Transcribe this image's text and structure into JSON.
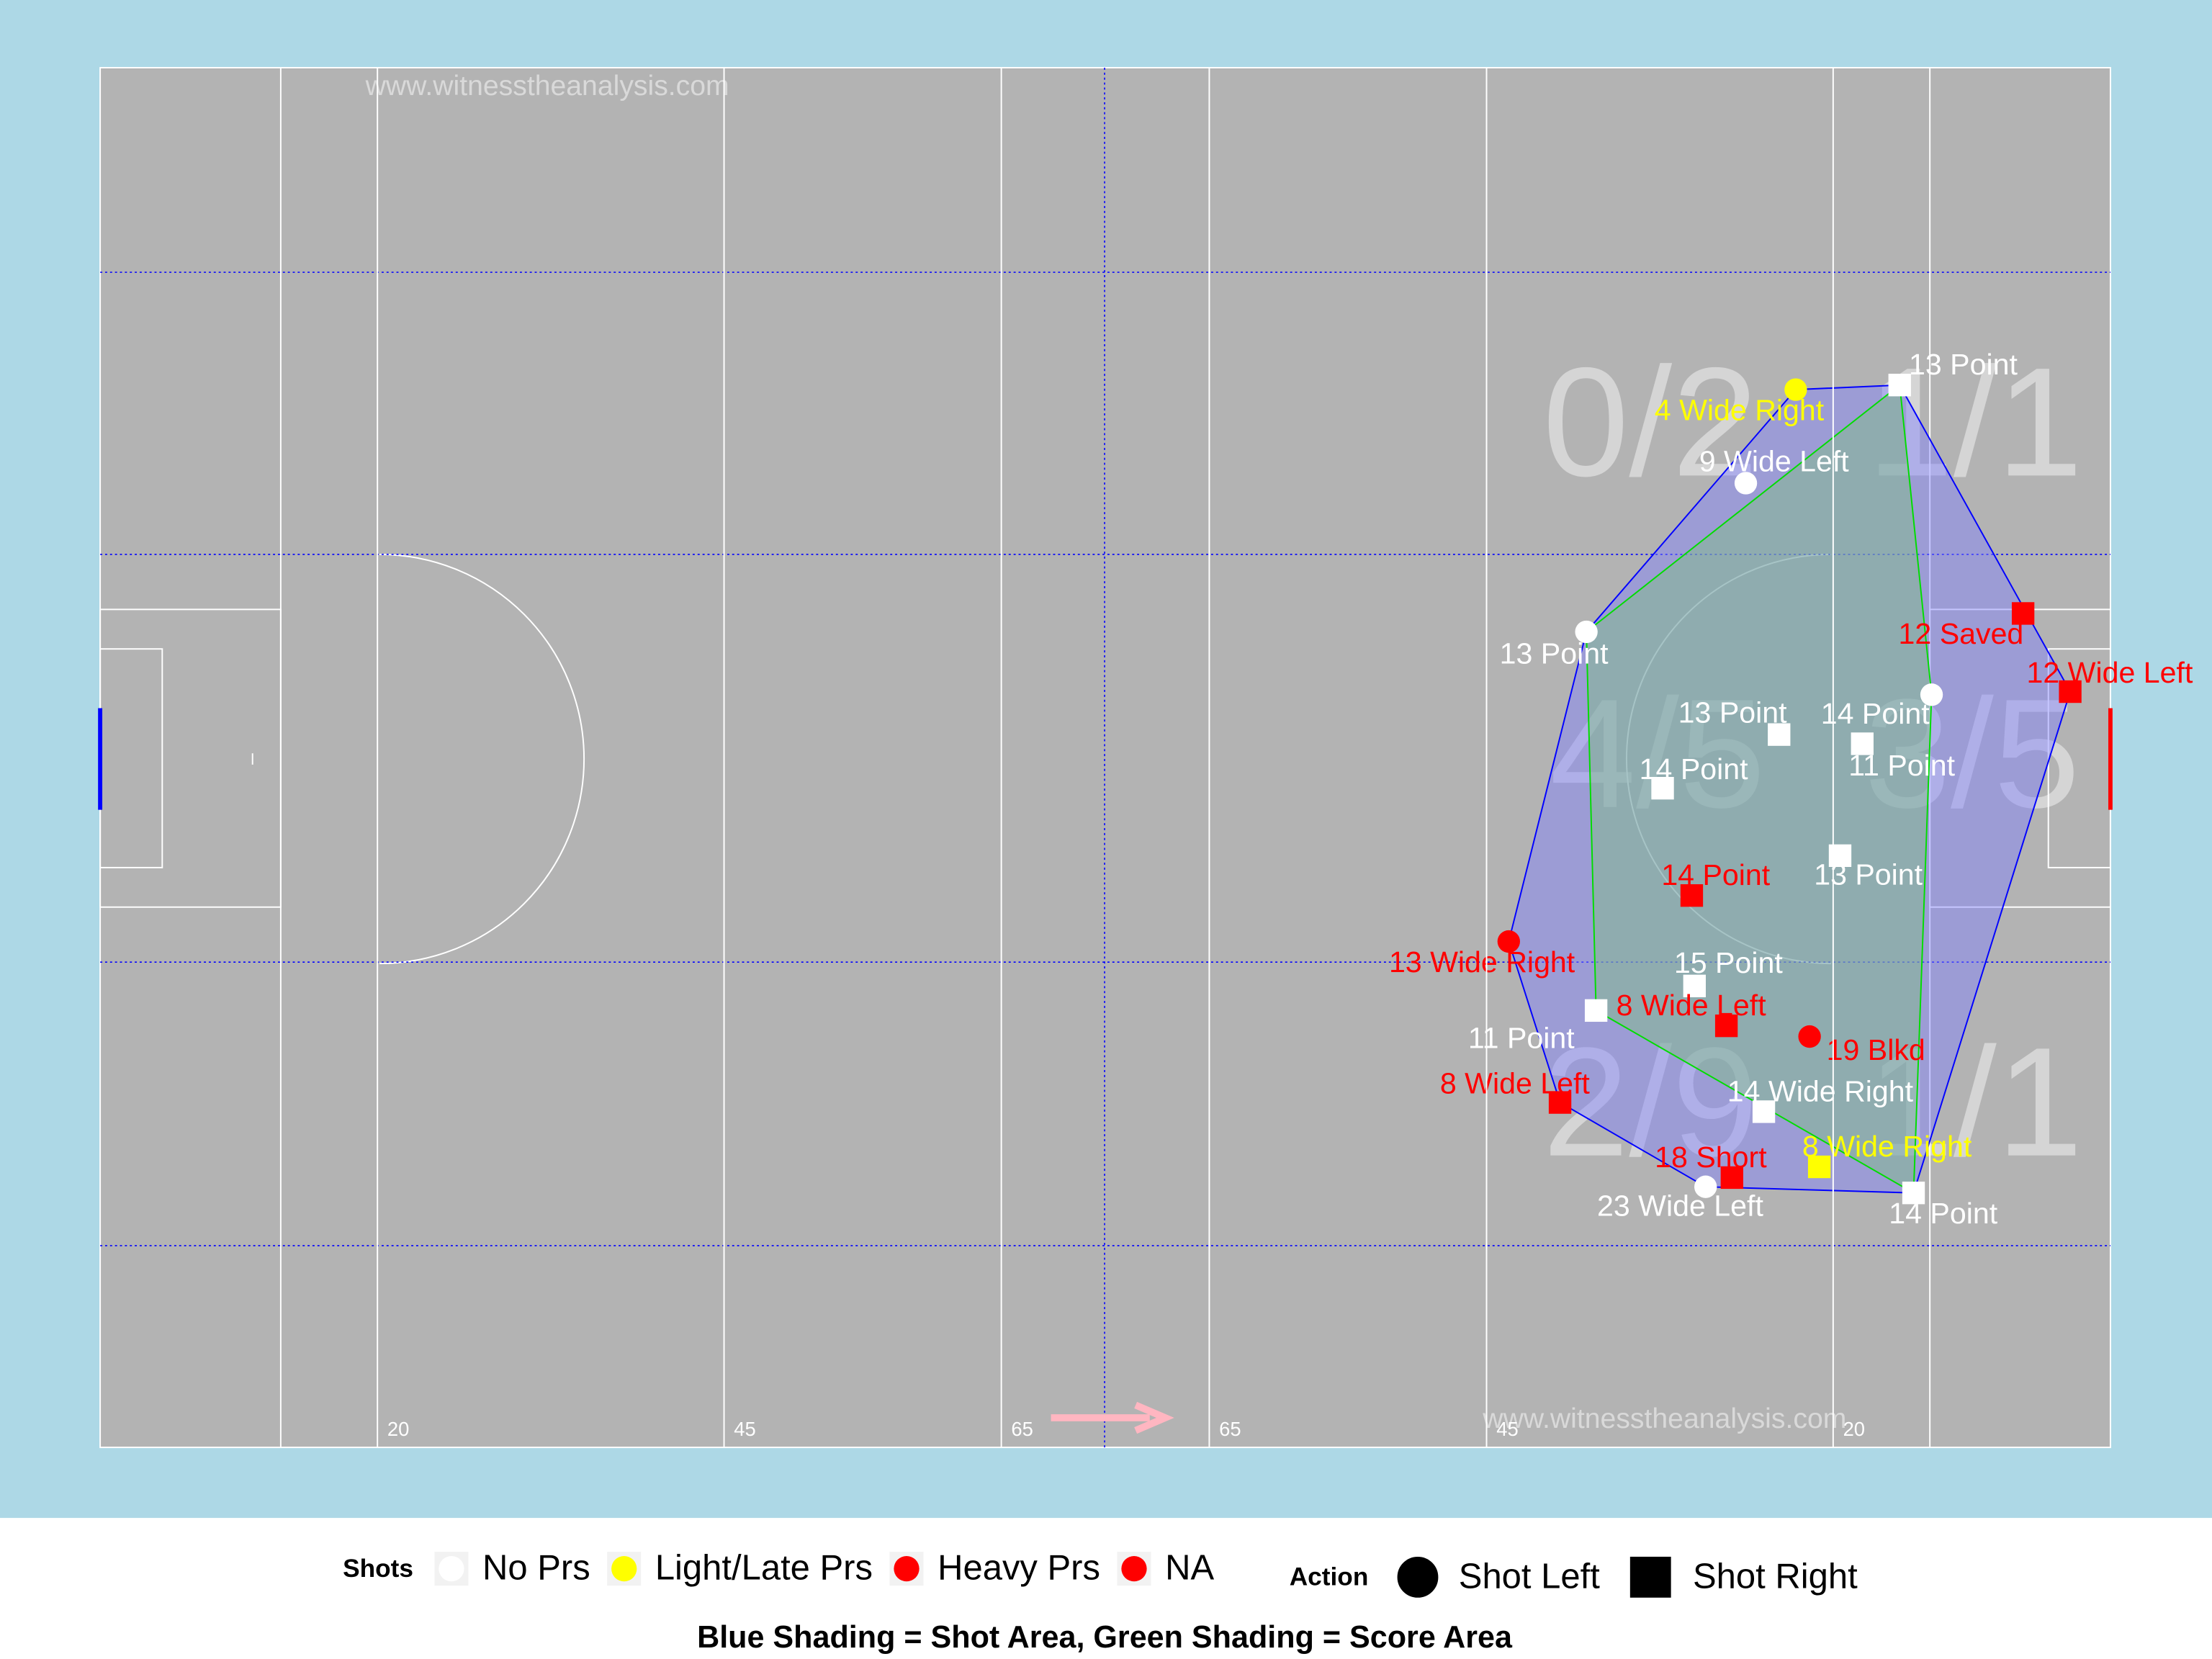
{
  "chart_data": {
    "type": "scatter",
    "watermarks": [
      "www.witnesstheanalysis.com",
      "www.witnesstheanalysis.com"
    ],
    "xlim": [
      0,
      145
    ],
    "ylim": [
      0,
      90
    ],
    "xticks": [
      20,
      45,
      65,
      {
        "value": 80,
        "label": "65"
      },
      {
        "value": 100,
        "label": "45"
      },
      {
        "value": 125,
        "label": "20"
      }
    ],
    "zones": [
      "0/2",
      "1/1",
      "4/5",
      "3/5",
      "2/9",
      "1/1"
    ],
    "legend": {
      "shots_title": "Shots",
      "pressure": [
        {
          "name": "No Prs",
          "color": "#ffffff"
        },
        {
          "name": "Light/Late Prs",
          "color": "#ffff00"
        },
        {
          "name": "Heavy Prs",
          "color": "#ff0000"
        },
        {
          "name": "NA",
          "color": "#ff0000"
        }
      ],
      "action_title": "Action",
      "actions": [
        "Shot Left",
        "Shot Right"
      ]
    },
    "caption": "Blue Shading = Shot Area, Green Shading = Score Area",
    "shots": [
      {
        "label": "4 Wide Right",
        "pressure": "Light/Late Prs",
        "action": "Shot Left",
        "x": 122.3,
        "y": 21.0
      },
      {
        "label": "13 Point",
        "pressure": "No Prs",
        "action": "Shot Right",
        "x": 129.8,
        "y": 20.7
      },
      {
        "label": "9 Wide Left",
        "pressure": "No Prs",
        "action": "Shot Left",
        "x": 118.7,
        "y": 27.1
      },
      {
        "label": "12 Saved",
        "pressure": "Heavy Prs",
        "action": "Shot Right",
        "x": 138.7,
        "y": 35.6
      },
      {
        "label": "12 Wide Left",
        "pressure": "Heavy Prs",
        "action": "Shot Right",
        "x": 142.1,
        "y": 40.7
      },
      {
        "label": "13 Point",
        "pressure": "No Prs",
        "action": "Shot Left",
        "x": 107.2,
        "y": 36.8
      },
      {
        "label": "14 Point",
        "pressure": "No Prs",
        "action": "Shot Left",
        "x": 132.1,
        "y": 40.9
      },
      {
        "label": "13 Point",
        "pressure": "No Prs",
        "action": "Shot Right",
        "x": 121.1,
        "y": 43.5
      },
      {
        "label": "11 Point",
        "pressure": "No Prs",
        "action": "Shot Right",
        "x": 127.1,
        "y": 44.1
      },
      {
        "label": "14 Point",
        "pressure": "No Prs",
        "action": "Shot Right",
        "x": 112.7,
        "y": 47.0
      },
      {
        "label": "13 Point",
        "pressure": "No Prs",
        "action": "Shot Right",
        "x": 125.5,
        "y": 51.4
      },
      {
        "label": "14 Point",
        "pressure": "Heavy Prs",
        "action": "Shot Right",
        "x": 114.8,
        "y": 54.0
      },
      {
        "label": "13 Wide Right",
        "pressure": "Heavy Prs",
        "action": "Shot Left",
        "x": 101.6,
        "y": 57.0
      },
      {
        "label": "15 Point",
        "pressure": "No Prs",
        "action": "Shot Right",
        "x": 115.0,
        "y": 59.9
      },
      {
        "label": "11 Point",
        "pressure": "No Prs",
        "action": "Shot Right",
        "x": 107.9,
        "y": 61.5
      },
      {
        "label": "8 Wide Left",
        "pressure": "Heavy Prs",
        "action": "Shot Right",
        "x": 117.3,
        "y": 62.5
      },
      {
        "label": "19 Blkd",
        "pressure": "Heavy Prs",
        "action": "Shot Left",
        "x": 123.3,
        "y": 63.2
      },
      {
        "label": "8 Wide Left",
        "pressure": "Heavy Prs",
        "action": "Shot Right",
        "x": 105.3,
        "y": 67.5
      },
      {
        "label": "14 Wide Right",
        "pressure": "No Prs",
        "action": "Shot Right",
        "x": 120.0,
        "y": 68.1
      },
      {
        "label": "8 Wide Right",
        "pressure": "Light/Late Prs",
        "action": "Shot Right",
        "x": 124.0,
        "y": 71.7
      },
      {
        "label": "18 Short",
        "pressure": "Heavy Prs",
        "action": "Shot Right",
        "x": 117.7,
        "y": 72.4
      },
      {
        "label": "23 Wide Left",
        "pressure": "No Prs",
        "action": "Shot Left",
        "x": 115.8,
        "y": 73.0
      },
      {
        "label": "14 Point",
        "pressure": "No Prs",
        "action": "Shot Right",
        "x": 130.8,
        "y": 73.4
      }
    ]
  }
}
